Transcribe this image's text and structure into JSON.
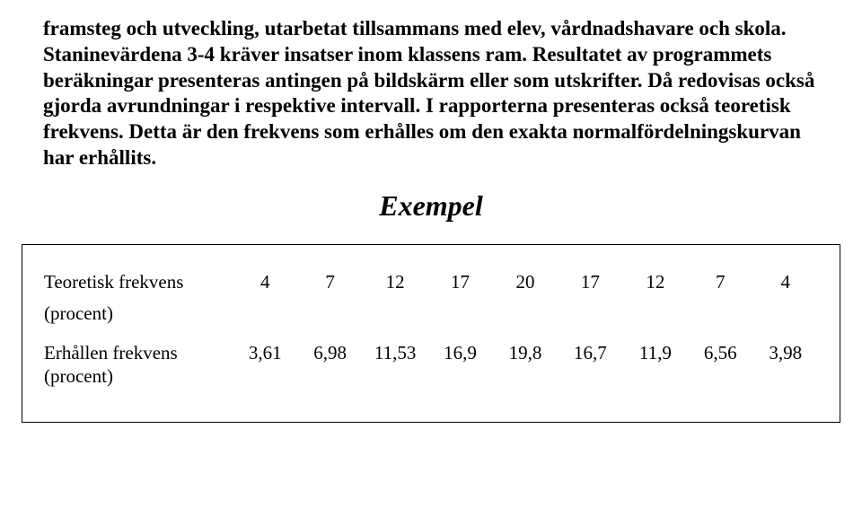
{
  "body_text": "framsteg och utveckling, utarbetat tillsammans med elev, vårdnadshavare och skola. Staninevärdena 3-4 kräver insatser inom klassens ram. Resultatet av programmets beräkningar presenteras antingen på bildskärm eller som utskrifter. Då redovisas också gjorda avrundningar i respektive intervall. I rapporterna presenteras också teoretisk frekvens. Detta är den frekvens som erhålles om den exakta normalfördelningskurvan har erhållits.",
  "exempel_heading": "Exempel",
  "table": {
    "row1_label": "Teoretisk frekvens",
    "row1": [
      "4",
      "7",
      "12",
      "17",
      "20",
      "17",
      "12",
      "7",
      "4"
    ],
    "procent1": "(procent)",
    "row2_label": "Erhållen frekvens",
    "row2": [
      "3,61",
      "6,98",
      "11,53",
      "16,9",
      "19,8",
      "16,7",
      "11,9",
      "6,56",
      "3,98"
    ],
    "procent2": "(procent)"
  }
}
